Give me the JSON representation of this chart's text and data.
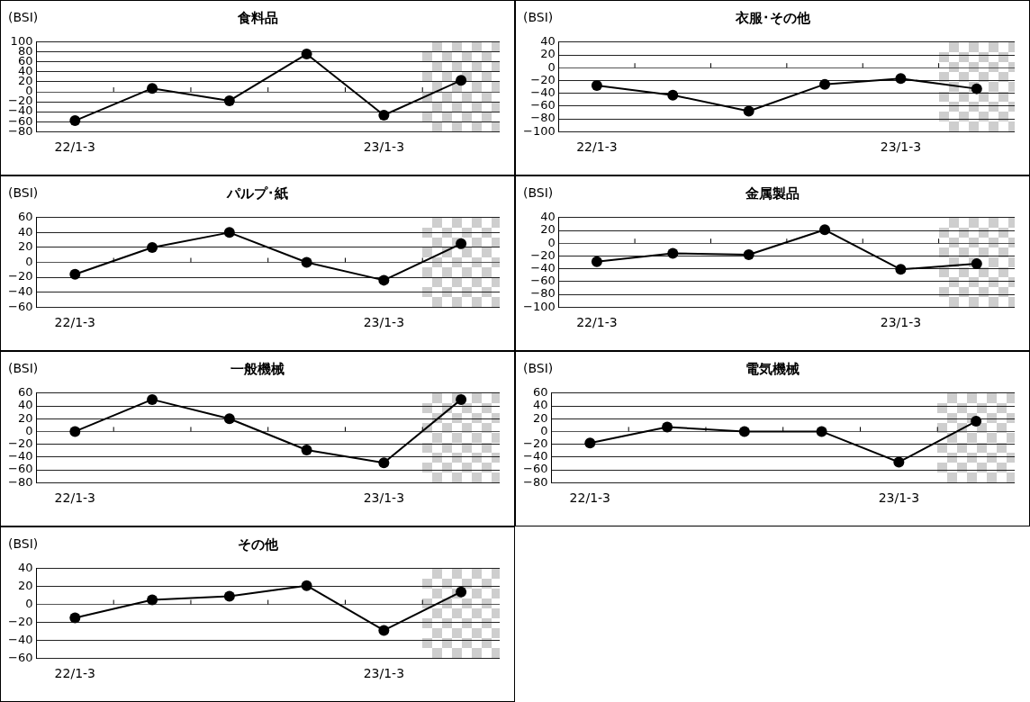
{
  "chart_data": [
    {
      "type": "line",
      "title": "食料品",
      "ylabel": "(BSI)",
      "categories": [
        "22/1-3",
        null,
        null,
        null,
        "23/1-3",
        null
      ],
      "values": [
        -58,
        7,
        -18,
        76,
        -47,
        23
      ],
      "color": "#000000",
      "ylim": [
        -80,
        100
      ],
      "yticks": [
        -80,
        -60,
        -40,
        -20,
        0,
        20,
        40,
        60,
        80,
        100
      ],
      "grid": "y",
      "marker": "circle"
    },
    {
      "type": "line",
      "title": "衣服･その他",
      "ylabel": "(BSI)",
      "categories": [
        "22/1-3",
        null,
        null,
        null,
        "23/1-3",
        null
      ],
      "values": [
        -28,
        -43,
        -68,
        -26,
        -17,
        -33
      ],
      "color": "#000000",
      "ylim": [
        -100,
        40
      ],
      "yticks": [
        -100,
        -80,
        -60,
        -40,
        -20,
        0,
        20,
        40
      ],
      "grid": "y",
      "marker": "circle"
    },
    {
      "type": "line",
      "title": "パルプ･紙",
      "ylabel": "(BSI)",
      "categories": [
        "22/1-3",
        null,
        null,
        null,
        "23/1-3",
        null
      ],
      "values": [
        -16,
        20,
        40,
        0,
        -24,
        25
      ],
      "color": "#000000",
      "ylim": [
        -60,
        60
      ],
      "yticks": [
        -60,
        -40,
        -20,
        0,
        20,
        40,
        60
      ],
      "grid": "y",
      "marker": "circle"
    },
    {
      "type": "line",
      "title": "金属製品",
      "ylabel": "(BSI)",
      "categories": [
        "22/1-3",
        null,
        null,
        null,
        "23/1-3",
        null
      ],
      "values": [
        -29,
        -16,
        -18,
        21,
        -41,
        -32
      ],
      "color": "#000000",
      "ylim": [
        -100,
        40
      ],
      "yticks": [
        -100,
        -80,
        -60,
        -40,
        -20,
        0,
        20,
        40
      ],
      "grid": "y",
      "marker": "circle"
    },
    {
      "type": "line",
      "title": "一般機械",
      "ylabel": "(BSI)",
      "categories": [
        "22/1-3",
        null,
        null,
        null,
        "23/1-3",
        null
      ],
      "values": [
        0,
        50,
        20,
        -29,
        -49,
        50
      ],
      "color": "#000000",
      "ylim": [
        -80,
        60
      ],
      "yticks": [
        -80,
        -60,
        -40,
        -20,
        0,
        20,
        40,
        60
      ],
      "grid": "y",
      "marker": "circle"
    },
    {
      "type": "line",
      "title": "電気機械",
      "ylabel": "(BSI)",
      "categories": [
        "22/1-3",
        null,
        null,
        null,
        "23/1-3",
        null
      ],
      "values": [
        -18,
        7,
        0,
        0,
        -48,
        16
      ],
      "color": "#000000",
      "ylim": [
        -80,
        60
      ],
      "yticks": [
        -80,
        -60,
        -40,
        -20,
        0,
        20,
        40,
        60
      ],
      "grid": "y",
      "marker": "circle"
    },
    {
      "type": "line",
      "title": "その他",
      "ylabel": "(BSI)",
      "categories": [
        "22/1-3",
        null,
        null,
        null,
        "23/1-3",
        null
      ],
      "values": [
        -15,
        5,
        9,
        21,
        -29,
        14
      ],
      "color": "#000000",
      "ylim": [
        -60,
        40
      ],
      "yticks": [
        -60,
        -40,
        -20,
        0,
        20,
        40
      ],
      "grid": "y",
      "marker": "circle"
    }
  ]
}
